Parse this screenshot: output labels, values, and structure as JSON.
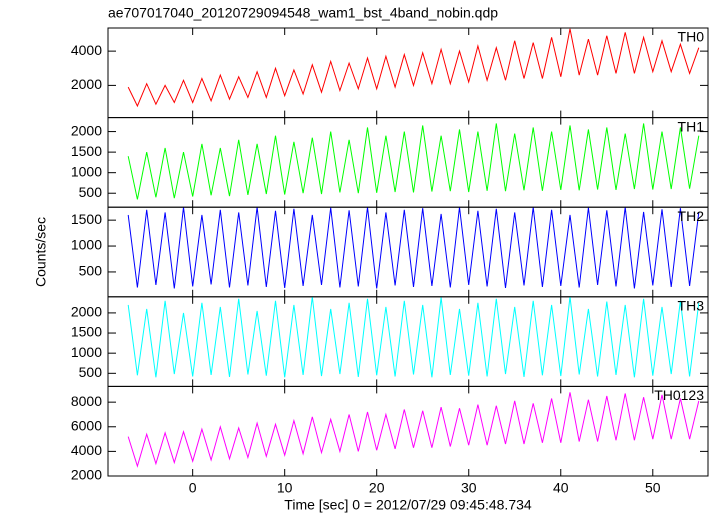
{
  "title": "ae707017040_20120729094548_wam1_bst_4band_nobin.qdp",
  "y_label": "Counts/sec",
  "x_label": "Time [sec] 0 = 2012/07/29 09:45:48.734",
  "chart_data": [
    {
      "type": "line",
      "label": "TH0",
      "color": "#ff0000",
      "x": [
        -7,
        -6,
        -5,
        -4,
        -3,
        -2,
        -1,
        0,
        1,
        2,
        3,
        4,
        5,
        6,
        7,
        8,
        9,
        10,
        11,
        12,
        13,
        14,
        15,
        16,
        17,
        18,
        19,
        20,
        21,
        22,
        23,
        24,
        25,
        26,
        27,
        28,
        29,
        30,
        31,
        32,
        33,
        34,
        35,
        36,
        37,
        38,
        39,
        40,
        41,
        42,
        43,
        44,
        45,
        46,
        47,
        48,
        49,
        50,
        51,
        52,
        53,
        54,
        55
      ],
      "values": [
        1900,
        800,
        2100,
        900,
        2000,
        1000,
        2300,
        1000,
        2400,
        1100,
        2600,
        1200,
        2500,
        1300,
        2800,
        1300,
        3000,
        1400,
        2900,
        1500,
        3200,
        1600,
        3400,
        1700,
        3300,
        1800,
        3600,
        1800,
        3700,
        1900,
        3800,
        2000,
        3900,
        2100,
        4100,
        2100,
        4000,
        2200,
        4300,
        2300,
        4200,
        2300,
        4600,
        2400,
        4500,
        2400,
        4800,
        2500,
        5300,
        2600,
        4700,
        2600,
        4900,
        2700,
        5100,
        2700,
        4800,
        2800,
        4600,
        2800,
        4400,
        2700,
        4200
      ],
      "xlim": [
        -9.2,
        56
      ],
      "xticks": [
        0,
        10,
        20,
        30,
        40,
        50
      ],
      "ylim": [
        120,
        5350
      ],
      "yticks": [
        2000,
        4000
      ]
    },
    {
      "type": "line",
      "label": "TH1",
      "color": "#00ff00",
      "x": [
        -7,
        -6,
        -5,
        -4,
        -3,
        -2,
        -1,
        0,
        1,
        2,
        3,
        4,
        5,
        6,
        7,
        8,
        9,
        10,
        11,
        12,
        13,
        14,
        15,
        16,
        17,
        18,
        19,
        20,
        21,
        22,
        23,
        24,
        25,
        26,
        27,
        28,
        29,
        30,
        31,
        32,
        33,
        34,
        35,
        36,
        37,
        38,
        39,
        40,
        41,
        42,
        43,
        44,
        45,
        46,
        47,
        48,
        49,
        50,
        51,
        52,
        53,
        54,
        55
      ],
      "values": [
        1400,
        350,
        1500,
        400,
        1600,
        380,
        1500,
        420,
        1700,
        450,
        1600,
        430,
        1800,
        460,
        1700,
        480,
        1900,
        470,
        1750,
        500,
        1850,
        480,
        2000,
        520,
        1800,
        500,
        2100,
        510,
        1900,
        530,
        2000,
        520,
        2150,
        540,
        1900,
        550,
        2050,
        530,
        2000,
        560,
        2200,
        550,
        1950,
        570,
        2100,
        560,
        2000,
        580,
        2150,
        570,
        2050,
        590,
        2100,
        580,
        1950,
        600,
        2200,
        590,
        2000,
        600,
        2100,
        610,
        1900
      ],
      "xlim": [
        -9.2,
        56
      ],
      "xticks": [
        0,
        10,
        20,
        30,
        40,
        50
      ],
      "ylim": [
        160,
        2340
      ],
      "yticks": [
        500,
        1000,
        1500,
        2000
      ]
    },
    {
      "type": "line",
      "label": "TH2",
      "color": "#0000ff",
      "x": [
        -7,
        -6,
        -5,
        -4,
        -3,
        -2,
        -1,
        0,
        1,
        2,
        3,
        4,
        5,
        6,
        7,
        8,
        9,
        10,
        11,
        12,
        13,
        14,
        15,
        16,
        17,
        18,
        19,
        20,
        21,
        22,
        23,
        24,
        25,
        26,
        27,
        28,
        29,
        30,
        31,
        32,
        33,
        34,
        35,
        36,
        37,
        38,
        39,
        40,
        41,
        42,
        43,
        44,
        45,
        46,
        47,
        48,
        49,
        50,
        51,
        52,
        53,
        54,
        55
      ],
      "values": [
        1600,
        200,
        1700,
        250,
        1650,
        180,
        1750,
        220,
        1600,
        260,
        1700,
        200,
        1650,
        240,
        1750,
        210,
        1680,
        190,
        1720,
        230,
        1600,
        250,
        1740,
        200,
        1690,
        220,
        1750,
        180,
        1650,
        240,
        1700,
        210,
        1730,
        230,
        1620,
        200,
        1750,
        250,
        1680,
        220,
        1720,
        190,
        1650,
        240,
        1750,
        210,
        1700,
        230,
        1600,
        200,
        1740,
        250,
        1690,
        220,
        1750,
        180,
        1660,
        240,
        1710,
        210,
        1730,
        230,
        1650
      ],
      "xlim": [
        -9.2,
        56
      ],
      "xticks": [
        0,
        10,
        20,
        30,
        40,
        50
      ],
      "ylim": [
        20,
        1750
      ],
      "yticks": [
        500,
        1000,
        1500
      ]
    },
    {
      "type": "line",
      "label": "TH3",
      "color": "#00ffff",
      "x": [
        -7,
        -6,
        -5,
        -4,
        -3,
        -2,
        -1,
        0,
        1,
        2,
        3,
        4,
        5,
        6,
        7,
        8,
        9,
        10,
        11,
        12,
        13,
        14,
        15,
        16,
        17,
        18,
        19,
        20,
        21,
        22,
        23,
        24,
        25,
        26,
        27,
        28,
        29,
        30,
        31,
        32,
        33,
        34,
        35,
        36,
        37,
        38,
        39,
        40,
        41,
        42,
        43,
        44,
        45,
        46,
        47,
        48,
        49,
        50,
        51,
        52,
        53,
        54,
        55
      ],
      "values": [
        2200,
        450,
        2100,
        400,
        2300,
        480,
        2000,
        420,
        2250,
        460,
        2150,
        410,
        2350,
        470,
        2050,
        440,
        2300,
        400,
        2200,
        460,
        2400,
        430,
        2100,
        480,
        2250,
        410,
        2350,
        450,
        2150,
        420,
        2300,
        470,
        2200,
        400,
        2380,
        460,
        2100,
        440,
        2250,
        420,
        2350,
        480,
        2150,
        410,
        2300,
        450,
        2200,
        430,
        2400,
        470,
        2100,
        420,
        2280,
        460,
        2200,
        400,
        2350,
        440,
        2150,
        480,
        2300,
        420,
        2250
      ],
      "xlim": [
        -9.2,
        56
      ],
      "xticks": [
        0,
        10,
        20,
        30,
        40,
        50
      ],
      "ylim": [
        175,
        2400
      ],
      "yticks": [
        500,
        1000,
        1500,
        2000
      ]
    },
    {
      "type": "line",
      "label": "TH0123",
      "color": "#ff00ff",
      "x": [
        -7,
        -6,
        -5,
        -4,
        -3,
        -2,
        -1,
        0,
        1,
        2,
        3,
        4,
        5,
        6,
        7,
        8,
        9,
        10,
        11,
        12,
        13,
        14,
        15,
        16,
        17,
        18,
        19,
        20,
        21,
        22,
        23,
        24,
        25,
        26,
        27,
        28,
        29,
        30,
        31,
        32,
        33,
        34,
        35,
        36,
        37,
        38,
        39,
        40,
        41,
        42,
        43,
        44,
        45,
        46,
        47,
        48,
        49,
        50,
        51,
        52,
        53,
        54,
        55
      ],
      "values": [
        5200,
        2800,
        5400,
        3000,
        5500,
        3100,
        5600,
        3200,
        5800,
        3300,
        6000,
        3400,
        5900,
        3500,
        6300,
        3600,
        6200,
        3700,
        6500,
        3800,
        6800,
        3900,
        6600,
        4000,
        7000,
        4000,
        7200,
        4100,
        7000,
        4200,
        7400,
        4300,
        7300,
        4300,
        7600,
        4400,
        7500,
        4500,
        7800,
        4500,
        7700,
        4600,
        8100,
        4600,
        7900,
        4700,
        8300,
        4700,
        8800,
        4800,
        8200,
        4800,
        8500,
        4900,
        8700,
        4900,
        8400,
        5000,
        8600,
        5000,
        8300,
        5000,
        8100
      ],
      "xlim": [
        -9.2,
        56
      ],
      "xticks": [
        0,
        10,
        20,
        30,
        40,
        50
      ],
      "ylim": [
        2000,
        9280
      ],
      "yticks": [
        2000,
        4000,
        6000,
        8000
      ]
    }
  ]
}
